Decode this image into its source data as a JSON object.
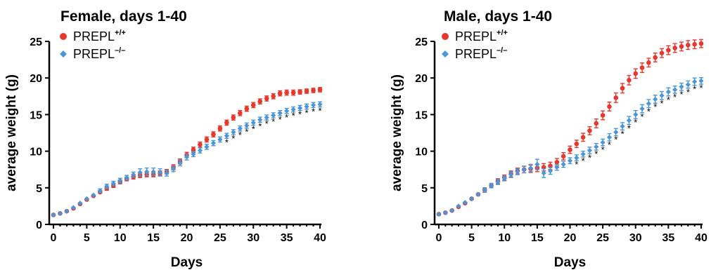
{
  "colors": {
    "wt": "#e8372c",
    "ko": "#4a96d6",
    "axis": "#000000"
  },
  "chart_data": [
    {
      "type": "scatter",
      "title": "Female, days 1-40",
      "xlabel": "Days",
      "ylabel": "average weight (g)",
      "xlim": [
        0,
        40
      ],
      "ylim": [
        0,
        25
      ],
      "xticks": [
        "0",
        "5",
        "10",
        "15",
        "20",
        "25",
        "30",
        "35",
        "40"
      ],
      "yticks": [
        "0",
        "5",
        "10",
        "15",
        "20",
        "25"
      ],
      "legend": {
        "position": "top-left",
        "entries": [
          {
            "base": "PREPL",
            "sup": "+/+",
            "marker": "circle"
          },
          {
            "base": "PREPL",
            "sup": "–/–",
            "marker": "diamond"
          }
        ]
      },
      "x": [
        0,
        1,
        2,
        3,
        4,
        5,
        6,
        7,
        8,
        9,
        10,
        11,
        12,
        13,
        14,
        15,
        16,
        17,
        18,
        19,
        20,
        21,
        22,
        23,
        24,
        25,
        26,
        27,
        28,
        29,
        30,
        31,
        32,
        33,
        34,
        35,
        36,
        37,
        38,
        39,
        40
      ],
      "series": [
        {
          "values": [
            1.3,
            1.5,
            1.8,
            2.2,
            2.8,
            3.4,
            3.9,
            4.4,
            4.9,
            5.3,
            5.8,
            6.2,
            6.5,
            6.7,
            6.8,
            6.8,
            7.0,
            7.2,
            7.8,
            8.6,
            9.5,
            10.2,
            10.9,
            11.6,
            12.3,
            13.1,
            13.9,
            14.6,
            15.2,
            15.8,
            16.3,
            16.8,
            17.2,
            17.5,
            17.9,
            18.0,
            18.0,
            18.1,
            18.2,
            18.3,
            18.4
          ],
          "errors": [
            0.1,
            0.1,
            0.1,
            0.15,
            0.15,
            0.2,
            0.2,
            0.2,
            0.25,
            0.25,
            0.25,
            0.25,
            0.3,
            0.3,
            0.3,
            0.3,
            0.3,
            0.3,
            0.35,
            0.35,
            0.35,
            0.35,
            0.35,
            0.35,
            0.35,
            0.35,
            0.35,
            0.35,
            0.35,
            0.35,
            0.35,
            0.35,
            0.35,
            0.35,
            0.35,
            0.35,
            0.35,
            0.3,
            0.3,
            0.3,
            0.3
          ]
        },
        {
          "values": [
            1.3,
            1.5,
            1.8,
            2.3,
            2.9,
            3.5,
            4.0,
            4.6,
            5.2,
            5.6,
            6.0,
            6.4,
            6.8,
            7.1,
            7.2,
            7.2,
            7.1,
            7.0,
            7.6,
            8.4,
            9.2,
            9.6,
            10.1,
            10.6,
            11.1,
            11.6,
            12.1,
            12.6,
            13.1,
            13.5,
            13.9,
            14.3,
            14.6,
            14.9,
            15.2,
            15.5,
            15.7,
            15.9,
            16.1,
            16.3,
            16.4
          ],
          "errors": [
            0.1,
            0.1,
            0.1,
            0.15,
            0.2,
            0.2,
            0.2,
            0.25,
            0.3,
            0.3,
            0.3,
            0.3,
            0.35,
            0.5,
            0.5,
            0.5,
            0.5,
            0.4,
            0.4,
            0.4,
            0.4,
            0.35,
            0.35,
            0.35,
            0.35,
            0.35,
            0.35,
            0.35,
            0.35,
            0.35,
            0.35,
            0.35,
            0.35,
            0.35,
            0.35,
            0.35,
            0.35,
            0.35,
            0.35,
            0.35,
            0.35
          ]
        }
      ],
      "significance_days": [
        26,
        27,
        28,
        29,
        30,
        31,
        32,
        33,
        34,
        35,
        36,
        37,
        38,
        39,
        40
      ],
      "significance_symbol": "*"
    },
    {
      "type": "scatter",
      "title": "Male, days 1-40",
      "xlabel": "Days",
      "ylabel": "average weight (g)",
      "xlim": [
        0,
        40
      ],
      "ylim": [
        0,
        25
      ],
      "xticks": [
        "0",
        "5",
        "10",
        "15",
        "20",
        "25",
        "30",
        "35",
        "40"
      ],
      "yticks": [
        "0",
        "5",
        "10",
        "15",
        "20",
        "25"
      ],
      "legend": {
        "position": "top-left",
        "entries": [
          {
            "base": "PREPL",
            "sup": "+/+",
            "marker": "circle"
          },
          {
            "base": "PREPL",
            "sup": "–/–",
            "marker": "diamond"
          }
        ]
      },
      "x": [
        0,
        1,
        2,
        3,
        4,
        5,
        6,
        7,
        8,
        9,
        10,
        11,
        12,
        13,
        14,
        15,
        16,
        17,
        18,
        19,
        20,
        21,
        22,
        23,
        24,
        25,
        26,
        27,
        28,
        29,
        30,
        31,
        32,
        33,
        34,
        35,
        36,
        37,
        38,
        39,
        40
      ],
      "series": [
        {
          "values": [
            1.4,
            1.6,
            1.9,
            2.4,
            2.9,
            3.5,
            4.1,
            4.7,
            5.3,
            5.9,
            6.4,
            6.9,
            7.3,
            7.5,
            7.6,
            7.7,
            7.8,
            8.0,
            8.5,
            9.3,
            10.2,
            11.0,
            11.9,
            12.8,
            13.8,
            14.9,
            16.1,
            17.3,
            18.6,
            19.7,
            20.6,
            21.4,
            22.1,
            22.8,
            23.4,
            23.8,
            24.1,
            24.3,
            24.5,
            24.6,
            24.7
          ],
          "errors": [
            0.1,
            0.1,
            0.1,
            0.15,
            0.2,
            0.2,
            0.2,
            0.3,
            0.3,
            0.35,
            0.35,
            0.4,
            0.4,
            0.45,
            0.5,
            0.5,
            0.5,
            0.5,
            0.5,
            0.5,
            0.5,
            0.5,
            0.55,
            0.55,
            0.6,
            0.6,
            0.6,
            0.65,
            0.65,
            0.65,
            0.65,
            0.65,
            0.6,
            0.6,
            0.6,
            0.6,
            0.6,
            0.6,
            0.6,
            0.6,
            0.55
          ]
        },
        {
          "values": [
            1.4,
            1.6,
            1.9,
            2.5,
            3.0,
            3.5,
            4.1,
            4.7,
            5.3,
            5.8,
            6.3,
            6.8,
            7.2,
            7.5,
            7.7,
            8.2,
            7.0,
            7.3,
            7.8,
            8.2,
            8.7,
            9.1,
            9.6,
            10.1,
            10.6,
            11.2,
            11.9,
            12.6,
            13.4,
            14.2,
            15.0,
            15.8,
            16.5,
            17.1,
            17.6,
            18.1,
            18.4,
            18.8,
            19.1,
            19.5,
            19.6
          ],
          "errors": [
            0.1,
            0.1,
            0.1,
            0.15,
            0.2,
            0.2,
            0.2,
            0.3,
            0.3,
            0.35,
            0.35,
            0.4,
            0.4,
            0.45,
            0.5,
            0.7,
            0.6,
            0.45,
            0.4,
            0.4,
            0.4,
            0.4,
            0.4,
            0.45,
            0.45,
            0.45,
            0.5,
            0.5,
            0.5,
            0.55,
            0.55,
            0.55,
            0.55,
            0.55,
            0.55,
            0.55,
            0.5,
            0.5,
            0.5,
            0.5,
            0.45
          ]
        }
      ],
      "significance_days": [
        21,
        22,
        23,
        24,
        25,
        26,
        27,
        28,
        29,
        30,
        31,
        32,
        33,
        34,
        35,
        36,
        37,
        38,
        39,
        40
      ],
      "significance_symbol": "*"
    }
  ]
}
